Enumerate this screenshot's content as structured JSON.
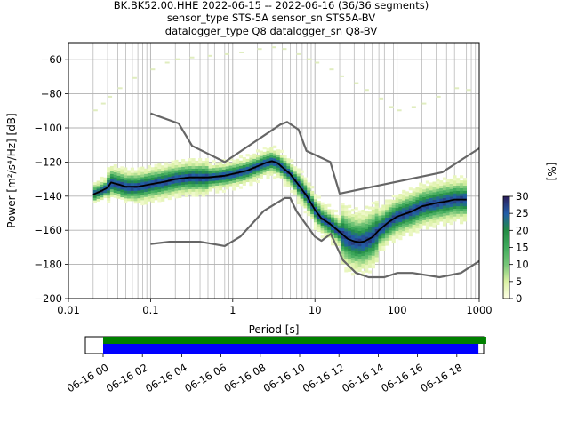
{
  "title": {
    "line1": "BK.BK52.00.HHE   2022-06-15 -- 2022-06-16  (36/36 segments)",
    "line2": "sensor_type STS-5A sensor_sn STS5A-BV",
    "line3": "datalogger_type Q8 datalogger_sn Q8-BV"
  },
  "colorbar": {
    "label": "[%]",
    "ticks": [
      "0",
      "5",
      "10",
      "15",
      "20",
      "25",
      "30"
    ],
    "range": [
      0,
      30
    ],
    "colors": [
      "#ffffe5",
      "#d9f0a3",
      "#78c679",
      "#41ab5d",
      "#238b45",
      "#225ea8",
      "#2c1e5a"
    ]
  },
  "colors": {
    "grid": "#b0b0b0",
    "noise_model": "#666666",
    "mode": "#000000",
    "coverage_data": "#008000",
    "coverage_gaps": "#0000ff"
  },
  "chart_data": {
    "type": "heatmap",
    "xlabel": "Period [s]",
    "ylabel": "Power [m²/s⁴/Hz] [dB]",
    "xscale": "log",
    "xlim": [
      0.01,
      1000
    ],
    "ylim": [
      -200,
      -50
    ],
    "x_ticks": [
      "0.01",
      "0.1",
      "1",
      "10",
      "100",
      "1000"
    ],
    "y_ticks": [
      "−200",
      "−180",
      "−160",
      "−140",
      "−120",
      "−100",
      "−80",
      "−60"
    ],
    "grid": true,
    "series": [
      {
        "role": "high-noise-model",
        "x": [
          0.1,
          0.22,
          0.32,
          0.8,
          3.8,
          4.6,
          6.3,
          7.9,
          15.4,
          20,
          354.8,
          1000
        ],
        "y": [
          -91.5,
          -97.4,
          -110.5,
          -120,
          -98,
          -96.5,
          -101,
          -113.5,
          -120,
          -138.5,
          -126,
          -112
        ]
      },
      {
        "role": "low-noise-model",
        "x": [
          0.1,
          0.17,
          0.4,
          0.8,
          1.24,
          2.4,
          4.3,
          5,
          6,
          10,
          12,
          15.6,
          21.9,
          31.6,
          45,
          70,
          101,
          154,
          328,
          600,
          1000
        ],
        "y": [
          -168,
          -166.7,
          -166.7,
          -169.2,
          -163.7,
          -148.6,
          -141.1,
          -141.1,
          -149,
          -163.8,
          -166.2,
          -162.1,
          -177.5,
          -185,
          -187.5,
          -187.5,
          -185,
          -185,
          -187.5,
          -185,
          -178
        ]
      },
      {
        "role": "mode",
        "x": [
          0.02,
          0.025,
          0.03,
          0.033,
          0.04,
          0.05,
          0.07,
          0.1,
          0.15,
          0.2,
          0.3,
          0.5,
          0.8,
          1,
          1.5,
          2,
          2.5,
          3,
          3.5,
          4,
          5,
          6,
          8,
          10,
          12,
          15,
          20,
          25,
          30,
          35,
          40,
          50,
          60,
          80,
          100,
          150,
          200,
          300,
          400,
          500,
          700
        ],
        "y": [
          -139,
          -137,
          -135,
          -132,
          -133,
          -134.5,
          -134.5,
          -133,
          -131.5,
          -130,
          -129,
          -129,
          -128,
          -127,
          -125,
          -122.5,
          -120.5,
          -119.5,
          -120.5,
          -123,
          -127,
          -132,
          -140,
          -148,
          -153,
          -156,
          -161,
          -165,
          -166.5,
          -167,
          -166.5,
          -164,
          -160,
          -155,
          -152,
          -149,
          -146,
          -144,
          -143,
          -142,
          -142
        ]
      }
    ]
  },
  "timeline": {
    "ticks": [
      "06-16 00",
      "06-16 02",
      "06-16 04",
      "06-16 06",
      "06-16 08",
      "06-16 10",
      "06-16 12",
      "06-16 14",
      "06-16 16",
      "06-16 18"
    ],
    "data_end_hour": 19.5,
    "gaps_end_hour": 19.1
  }
}
